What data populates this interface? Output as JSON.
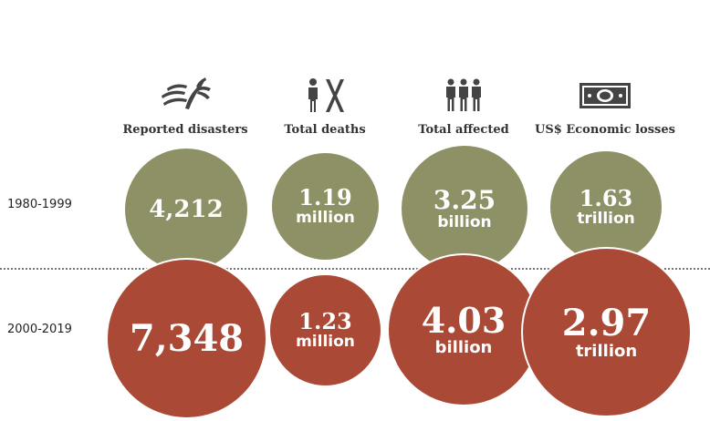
{
  "chart_data": {
    "type": "bubble",
    "categories": [
      "Reported disasters",
      "Total deaths",
      "Total affected",
      "US$ Economic losses"
    ],
    "icons": [
      "storm-icon",
      "person-death-icon",
      "group-people-icon",
      "banknote-icon"
    ],
    "periods": [
      {
        "label": "1980-1999",
        "color": "#8e9166",
        "values": [
          {
            "number": "4,212",
            "unit": ""
          },
          {
            "number": "1.19",
            "unit": "million"
          },
          {
            "number": "3.25",
            "unit": "billion"
          },
          {
            "number": "1.63",
            "unit": "trillion"
          }
        ],
        "raw": [
          4212,
          1190000,
          3250000000,
          1630000000000
        ]
      },
      {
        "label": "2000-2019",
        "color": "#aa4a36",
        "values": [
          {
            "number": "7,348",
            "unit": ""
          },
          {
            "number": "1.23",
            "unit": "million"
          },
          {
            "number": "4.03",
            "unit": "billion"
          },
          {
            "number": "2.97",
            "unit": "trillion"
          }
        ],
        "raw": [
          7348,
          1230000,
          4030000000,
          2970000000000
        ]
      }
    ]
  }
}
